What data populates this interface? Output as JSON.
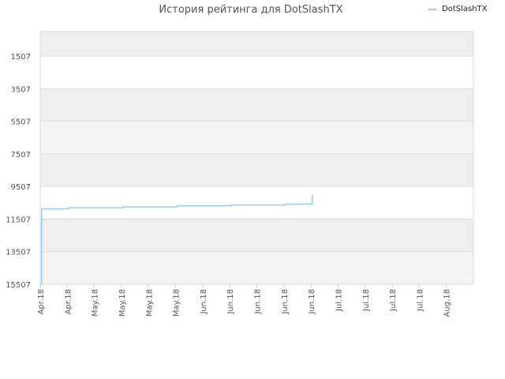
{
  "chart_data": {
    "type": "line",
    "title": "История рейтинга для DotSlashTX",
    "legend": {
      "position": "top-right",
      "entries": [
        "DotSlashTX"
      ]
    },
    "x_tick_labels": [
      "Apr.18",
      "Apr.18",
      "May.18",
      "May.18",
      "May.18",
      "May.18",
      "Jun.18",
      "Jun.18",
      "Jun.18",
      "Jun.18",
      "Jun.18",
      "Jul.18",
      "Jul.18",
      "Jul.18",
      "Jul.18",
      "Aug.18"
    ],
    "y_tick_labels": [
      "1507",
      "3507",
      "5507",
      "7507",
      "9507",
      "11507",
      "13507",
      "15507"
    ],
    "y_ticks": [
      1507,
      3507,
      5507,
      7507,
      9507,
      11507,
      13507,
      15507
    ],
    "ylim": [
      15507,
      0
    ],
    "y_inverted": true,
    "grid": true,
    "series": [
      {
        "name": "DotSlashTX",
        "color": "#99ccee",
        "step": true,
        "points": [
          [
            0.0,
            15507
          ],
          [
            0.05,
            10880
          ],
          [
            1.0,
            10880
          ],
          [
            1.05,
            10820
          ],
          [
            3.0,
            10820
          ],
          [
            3.05,
            10760
          ],
          [
            5.0,
            10760
          ],
          [
            5.05,
            10700
          ],
          [
            7.0,
            10700
          ],
          [
            7.05,
            10640
          ],
          [
            9.0,
            10640
          ],
          [
            9.05,
            10590
          ],
          [
            10.0,
            10590
          ],
          [
            10.05,
            10050
          ]
        ]
      }
    ]
  }
}
